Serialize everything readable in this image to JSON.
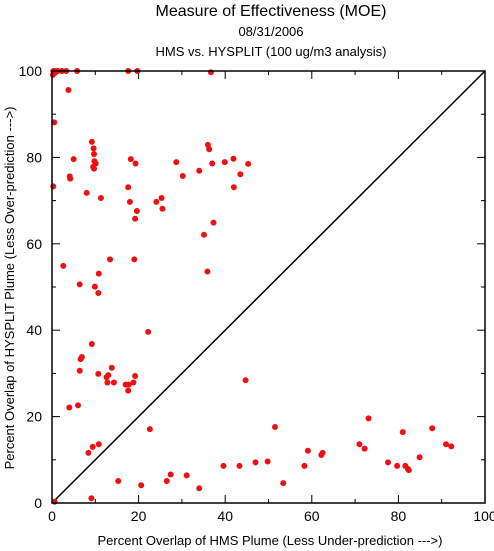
{
  "chart_data": {
    "type": "scatter",
    "title": "Measure of Effectiveness (MOE)",
    "subtitle_date": "08/31/2006",
    "subtitle_analysis": "HMS vs. HYSPLIT  (100 ug/m3 analysis)",
    "xlabel": "Percent Overlap of HMS Plume (Less Under-prediction --->)",
    "ylabel": "Percent Overlap of HYSPLIT Plume (Less Over-prediction --->)",
    "xlim": [
      0,
      100
    ],
    "ylim": [
      0,
      100
    ],
    "x_ticks": [
      0,
      20,
      40,
      60,
      80,
      100
    ],
    "y_ticks": [
      0,
      20,
      40,
      60,
      80,
      100
    ],
    "diagonal_line": [
      [
        0,
        0
      ],
      [
        100,
        100
      ]
    ],
    "marker_color": "#ee1111",
    "points": [
      [
        0.3,
        100
      ],
      [
        0.8,
        100
      ],
      [
        1.3,
        100
      ],
      [
        2.3,
        100
      ],
      [
        3.3,
        100
      ],
      [
        5.8,
        100
      ],
      [
        17.6,
        100
      ],
      [
        19.7,
        100
      ],
      [
        36.7,
        99.7
      ],
      [
        0.2,
        99.1
      ],
      [
        0.7,
        99.6
      ],
      [
        0.5,
        88.1
      ],
      [
        3.8,
        95.6
      ],
      [
        0.3,
        73.3
      ],
      [
        4.2,
        75.1
      ],
      [
        4.1,
        75.6
      ],
      [
        5.0,
        79.6
      ],
      [
        8.0,
        71.8
      ],
      [
        9.2,
        83.6
      ],
      [
        9.6,
        82.1
      ],
      [
        9.7,
        80.8
      ],
      [
        9.8,
        79.1
      ],
      [
        10.1,
        78.6
      ],
      [
        9.5,
        77.8
      ],
      [
        9.7,
        77.4
      ],
      [
        11.3,
        70.6
      ],
      [
        17.6,
        73.1
      ],
      [
        18.2,
        79.6
      ],
      [
        18.0,
        69.7
      ],
      [
        19.3,
        78.6
      ],
      [
        19.2,
        65.8
      ],
      [
        19.6,
        67.6
      ],
      [
        24.1,
        69.7
      ],
      [
        25.3,
        70.6
      ],
      [
        25.5,
        68.1
      ],
      [
        28.7,
        78.9
      ],
      [
        30.2,
        75.7
      ],
      [
        34.0,
        76.9
      ],
      [
        36.0,
        82.9
      ],
      [
        36.3,
        81.9
      ],
      [
        37.0,
        78.6
      ],
      [
        39.9,
        78.9
      ],
      [
        41.9,
        79.7
      ],
      [
        42.0,
        73.1
      ],
      [
        43.5,
        76.1
      ],
      [
        45.3,
        78.5
      ],
      [
        35.1,
        62.1
      ],
      [
        35.9,
        53.6
      ],
      [
        37.3,
        64.9
      ],
      [
        2.6,
        54.9
      ],
      [
        6.4,
        50.6
      ],
      [
        9.9,
        50.1
      ],
      [
        10.7,
        48.6
      ],
      [
        10.8,
        53.1
      ],
      [
        13.4,
        56.4
      ],
      [
        19.0,
        56.4
      ],
      [
        22.2,
        39.6
      ],
      [
        9.2,
        36.8
      ],
      [
        6.6,
        33.3
      ],
      [
        6.9,
        33.8
      ],
      [
        6.4,
        30.6
      ],
      [
        10.7,
        29.9
      ],
      [
        12.6,
        29.1
      ],
      [
        13.0,
        29.6
      ],
      [
        12.8,
        27.9
      ],
      [
        13.8,
        31.3
      ],
      [
        14.3,
        27.9
      ],
      [
        17.0,
        27.4
      ],
      [
        17.7,
        27.4
      ],
      [
        17.6,
        26.0
      ],
      [
        18.8,
        27.9
      ],
      [
        19.2,
        29.4
      ],
      [
        4.0,
        22.1
      ],
      [
        6.0,
        22.6
      ],
      [
        44.7,
        28.4
      ],
      [
        22.6,
        17.1
      ],
      [
        10.8,
        13.6
      ],
      [
        9.4,
        13.0
      ],
      [
        8.4,
        11.6
      ],
      [
        51.5,
        17.6
      ],
      [
        73.1,
        19.6
      ],
      [
        72.2,
        12.6
      ],
      [
        71.0,
        13.6
      ],
      [
        59.1,
        12.1
      ],
      [
        58.3,
        8.6
      ],
      [
        62.2,
        11.1
      ],
      [
        62.5,
        11.6
      ],
      [
        81.0,
        16.4
      ],
      [
        87.8,
        17.3
      ],
      [
        91.0,
        13.6
      ],
      [
        92.2,
        13.1
      ],
      [
        84.9,
        10.6
      ],
      [
        81.6,
        8.6
      ],
      [
        82.2,
        7.9
      ],
      [
        82.4,
        7.6
      ],
      [
        79.7,
        8.6
      ],
      [
        77.6,
        9.4
      ],
      [
        47.0,
        9.4
      ],
      [
        49.8,
        9.6
      ],
      [
        43.3,
        8.6
      ],
      [
        39.6,
        8.6
      ],
      [
        53.4,
        4.6
      ],
      [
        31.1,
        6.4
      ],
      [
        34.0,
        3.4
      ],
      [
        26.5,
        5.1
      ],
      [
        27.4,
        6.6
      ],
      [
        20.6,
        4.1
      ],
      [
        15.3,
        5.1
      ],
      [
        9.1,
        1.1
      ],
      [
        0.6,
        0.3
      ]
    ]
  }
}
